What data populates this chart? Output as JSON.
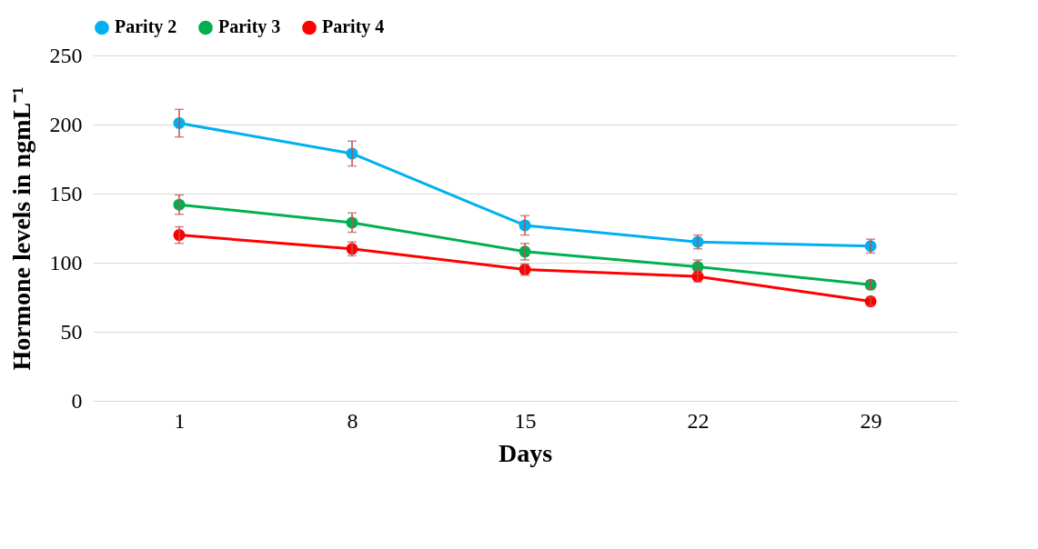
{
  "chart_data": {
    "type": "line",
    "xlabel": "Days",
    "ylabel": "Hormone levels in ngmL⁻¹",
    "categories": [
      "1",
      "8",
      "15",
      "22",
      "29"
    ],
    "ylim": [
      0,
      250
    ],
    "yticks": [
      0,
      50,
      100,
      150,
      200,
      250
    ],
    "grid": "y",
    "legend": "top",
    "marker": "circle",
    "series": [
      {
        "name": "Parity 2",
        "color": "#00b0f0",
        "values": [
          201,
          179,
          127,
          115,
          112
        ],
        "errors": [
          10,
          9,
          7,
          5,
          5
        ]
      },
      {
        "name": "Parity 3",
        "color": "#00b050",
        "values": [
          142,
          129,
          108,
          97,
          84
        ],
        "errors": [
          7,
          7,
          6,
          5,
          3
        ]
      },
      {
        "name": "Parity 4",
        "color": "#ff0000",
        "values": [
          120,
          110,
          95,
          90,
          72
        ],
        "errors": [
          6,
          5,
          4,
          4,
          3
        ]
      }
    ]
  }
}
